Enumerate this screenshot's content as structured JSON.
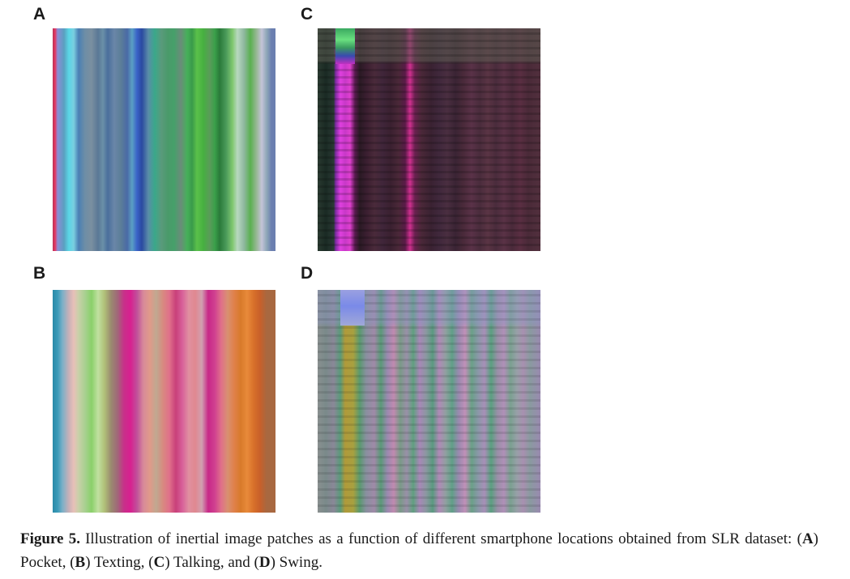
{
  "panels": {
    "a": {
      "letter": "A"
    },
    "b": {
      "letter": "B"
    },
    "c": {
      "letter": "C"
    },
    "d": {
      "letter": "D"
    }
  },
  "caption": {
    "label": "Figure 5.",
    "text_1": "Illustration of inertial image patches as a function of different smartphone locations obtained from SLR dataset: (",
    "a": "A",
    "text_2": ") Pocket, (",
    "b": "B",
    "text_3": ") Texting, (",
    "c": "C",
    "text_4": ") Talking, and (",
    "d": "D",
    "text_5": ") Swing."
  }
}
